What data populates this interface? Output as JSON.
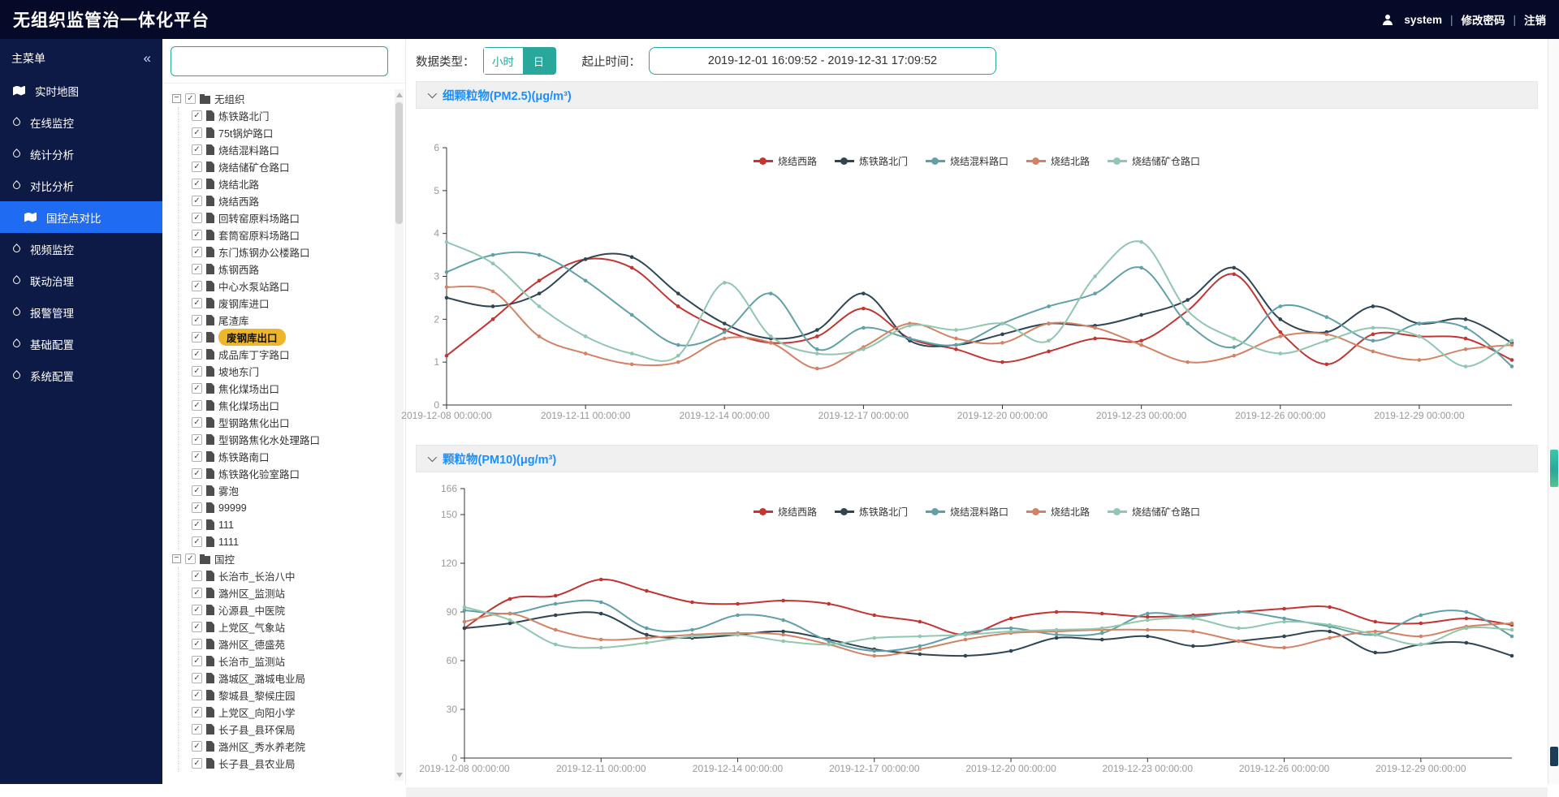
{
  "app": {
    "title": "无组织监管治一体化平台",
    "user": "system",
    "links": [
      "修改密码",
      "注销"
    ]
  },
  "sidebar": {
    "header": "主菜单",
    "collapse_icon": "«",
    "items": [
      {
        "label": "实时地图",
        "icon": "map"
      },
      {
        "label": "在线监控",
        "icon": "drop"
      },
      {
        "label": "统计分析",
        "icon": "drop"
      },
      {
        "label": "对比分析",
        "icon": "drop"
      },
      {
        "label": "国控点对比",
        "icon": "map",
        "sub": true,
        "active": true
      },
      {
        "label": "视频监控",
        "icon": "drop"
      },
      {
        "label": "联动治理",
        "icon": "drop"
      },
      {
        "label": "报警管理",
        "icon": "drop"
      },
      {
        "label": "基础配置",
        "icon": "drop"
      },
      {
        "label": "系统配置",
        "icon": "drop"
      }
    ]
  },
  "tree": {
    "search_value": "",
    "groups": [
      {
        "label": "无组织",
        "children": [
          "炼铁路北门",
          "75t锅炉路口",
          "烧结混料路口",
          "烧结储矿仓路口",
          "烧结北路",
          "烧结西路",
          "回转窑原料场路口",
          "套筒窑原料场路口",
          "东门炼钢办公楼路口",
          "炼钢西路",
          "中心水泵站路口",
          "废钢库进口",
          "尾渣库",
          "废钢库出口",
          "成品库丁字路口",
          "坡地东门",
          "焦化煤场出口",
          "焦化煤场出口",
          "型钢路焦化出口",
          "型钢路焦化水处理路口",
          "炼铁路南口",
          "炼铁路化验室路口",
          "雾泡",
          "99999",
          "111",
          "1111"
        ],
        "highlighted": "废钢库出口"
      },
      {
        "label": "国控",
        "children": [
          "长治市_长治八中",
          "潞州区_监测站",
          "沁源县_中医院",
          "上党区_气象站",
          "潞州区_德盛苑",
          "长治市_监测站",
          "潞城区_潞城电业局",
          "黎城县_黎候庄园",
          "上党区_向阳小学",
          "长子县_县环保局",
          "潞州区_秀水养老院",
          "长子县_县农业局"
        ]
      }
    ]
  },
  "toolbar": {
    "data_type_label": "数据类型：",
    "hour_label": "小时",
    "day_label": "日",
    "selected_type": "日",
    "range_label": "起止时间：",
    "range_value": "2019-12-01 16:09:52 - 2019-12-31 17:09:52"
  },
  "chart_data": [
    {
      "type": "line",
      "smooth": true,
      "grid": false,
      "legend_position": "top-center",
      "title": "细颗粒物(PM2.5)(μg/m³)",
      "ylim": [
        0,
        6
      ],
      "y_ticks": [
        0,
        1,
        2,
        3,
        4,
        5,
        6
      ],
      "x": [
        "2019-12-08",
        "2019-12-09",
        "2019-12-10",
        "2019-12-11",
        "2019-12-12",
        "2019-12-13",
        "2019-12-14",
        "2019-12-15",
        "2019-12-16",
        "2019-12-17",
        "2019-12-18",
        "2019-12-19",
        "2019-12-20",
        "2019-12-21",
        "2019-12-22",
        "2019-12-23",
        "2019-12-24",
        "2019-12-25",
        "2019-12-26",
        "2019-12-27",
        "2019-12-28",
        "2019-12-29",
        "2019-12-30",
        "2019-12-31"
      ],
      "x_tick_every": 3,
      "x_tick_labels": [
        "2019-12-08 00:00:00",
        "2019-12-11 00:00:00",
        "2019-12-14 00:00:00",
        "2019-12-17 00:00:00",
        "2019-12-20 00:00:00",
        "2019-12-23 00:00:00",
        "2019-12-26 00:00:00",
        "2019-12-29 00:00:00"
      ],
      "series": [
        {
          "name": "烧结西路",
          "color": "#c23531",
          "values": [
            1.15,
            2.0,
            2.9,
            3.4,
            3.2,
            2.3,
            1.75,
            1.45,
            1.6,
            2.25,
            1.55,
            1.3,
            1.0,
            1.25,
            1.55,
            1.5,
            2.2,
            3.05,
            1.7,
            0.95,
            1.65,
            1.6,
            1.55,
            1.05
          ]
        },
        {
          "name": "炼铁路北门",
          "color": "#2f4554",
          "values": [
            2.5,
            2.3,
            2.6,
            3.4,
            3.45,
            2.6,
            1.9,
            1.55,
            1.75,
            2.6,
            1.5,
            1.4,
            1.65,
            1.9,
            1.85,
            2.1,
            2.45,
            3.2,
            2.0,
            1.7,
            2.3,
            1.9,
            2.0,
            1.45
          ]
        },
        {
          "name": "烧结混料路口",
          "color": "#61a0a8",
          "values": [
            3.1,
            3.5,
            3.5,
            2.9,
            2.1,
            1.4,
            1.7,
            2.6,
            1.3,
            1.8,
            1.55,
            1.4,
            1.9,
            2.3,
            2.6,
            3.2,
            1.9,
            1.35,
            2.3,
            2.05,
            1.5,
            1.9,
            1.8,
            0.9
          ]
        },
        {
          "name": "烧结北路",
          "color": "#d48265",
          "values": [
            2.75,
            2.65,
            1.6,
            1.2,
            0.95,
            1.0,
            1.55,
            1.45,
            0.85,
            1.35,
            1.9,
            1.55,
            1.45,
            1.9,
            1.8,
            1.4,
            1.0,
            1.15,
            1.6,
            1.65,
            1.25,
            1.05,
            1.3,
            1.4
          ]
        },
        {
          "name": "烧结储矿仓路口",
          "color": "#91c7ae",
          "values": [
            3.8,
            3.3,
            2.3,
            1.6,
            1.2,
            1.15,
            2.85,
            1.6,
            1.2,
            1.3,
            1.85,
            1.75,
            1.9,
            1.5,
            3.0,
            3.8,
            2.2,
            1.55,
            1.2,
            1.5,
            1.8,
            1.6,
            0.9,
            1.5
          ]
        }
      ]
    },
    {
      "type": "line",
      "smooth": true,
      "grid": false,
      "legend_position": "top-center",
      "title": "颗粒物(PM10)(μg/m³)",
      "ylim": [
        0,
        166
      ],
      "y_ticks": [
        0,
        30,
        60,
        90,
        120,
        150,
        166
      ],
      "x": [
        "2019-12-08",
        "2019-12-09",
        "2019-12-10",
        "2019-12-11",
        "2019-12-12",
        "2019-12-13",
        "2019-12-14",
        "2019-12-15",
        "2019-12-16",
        "2019-12-17",
        "2019-12-18",
        "2019-12-19",
        "2019-12-20",
        "2019-12-21",
        "2019-12-22",
        "2019-12-23",
        "2019-12-24",
        "2019-12-25",
        "2019-12-26",
        "2019-12-27",
        "2019-12-28",
        "2019-12-29",
        "2019-12-30",
        "2019-12-31"
      ],
      "x_tick_every": 3,
      "x_tick_labels": [
        "2019-12-08 00:00:00",
        "2019-12-11 00:00:00",
        "2019-12-14 00:00:00",
        "2019-12-17 00:00:00",
        "2019-12-20 00:00:00",
        "2019-12-23 00:00:00",
        "2019-12-26 00:00:00",
        "2019-12-29 00:00:00"
      ],
      "series": [
        {
          "name": "烧结西路",
          "color": "#c23531",
          "values": [
            80,
            98,
            100,
            110,
            103,
            96,
            95,
            97,
            95,
            88,
            84,
            76,
            86,
            90,
            89,
            87,
            88,
            90,
            92,
            93,
            84,
            83,
            86,
            82
          ]
        },
        {
          "name": "炼铁路北门",
          "color": "#2f4554",
          "values": [
            80,
            83,
            88,
            89,
            76,
            74,
            76,
            78,
            73,
            67,
            64,
            63,
            66,
            74,
            73,
            75,
            69,
            72,
            75,
            78,
            65,
            70,
            71,
            63
          ]
        },
        {
          "name": "烧结混料路口",
          "color": "#61a0a8",
          "values": [
            91,
            89,
            95,
            96,
            80,
            79,
            88,
            85,
            72,
            66,
            69,
            77,
            80,
            76,
            77,
            89,
            87,
            90,
            86,
            81,
            76,
            88,
            90,
            75
          ]
        },
        {
          "name": "烧结北路",
          "color": "#d48265",
          "values": [
            84,
            89,
            79,
            73,
            74,
            76,
            77,
            76,
            70,
            63,
            67,
            73,
            77,
            78,
            79,
            79,
            78,
            72,
            68,
            74,
            78,
            75,
            81,
            83
          ]
        },
        {
          "name": "烧结储矿仓路口",
          "color": "#91c7ae",
          "values": [
            93,
            85,
            70,
            68,
            71,
            75,
            76,
            72,
            70,
            74,
            75,
            76,
            78,
            79,
            80,
            85,
            86,
            80,
            84,
            82,
            76,
            70,
            80,
            79
          ]
        }
      ]
    }
  ]
}
